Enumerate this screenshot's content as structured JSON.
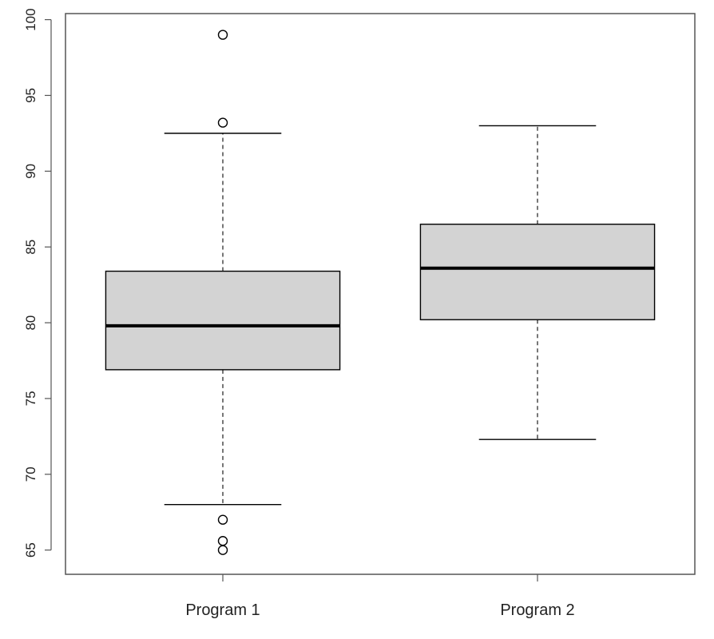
{
  "chart_data": {
    "type": "boxplot",
    "categories": [
      "Program 1",
      "Program 2"
    ],
    "boxes": [
      {
        "category": "Program 1",
        "whisker_low": 68.0,
        "q1": 76.9,
        "median": 79.8,
        "q3": 83.4,
        "whisker_high": 92.5,
        "outliers": [
          99.0,
          93.2,
          67.0,
          65.6,
          65.0
        ]
      },
      {
        "category": "Program 2",
        "whisker_low": 72.3,
        "q1": 80.2,
        "median": 83.6,
        "q3": 86.5,
        "whisker_high": 93.0,
        "outliers": []
      }
    ],
    "y_ticks": [
      65,
      70,
      75,
      80,
      85,
      90,
      95,
      100
    ],
    "y_tick_labels": [
      "65",
      "70",
      "75",
      "80",
      "85",
      "90",
      "95",
      "100"
    ],
    "ylim": [
      63.4,
      100.4
    ],
    "title": "",
    "xlabel": "",
    "ylabel": "",
    "grid": false,
    "colors": {
      "box_fill": "#d3d3d3",
      "line": "#000000",
      "whisker": "#555555",
      "frame": "#555555"
    }
  }
}
